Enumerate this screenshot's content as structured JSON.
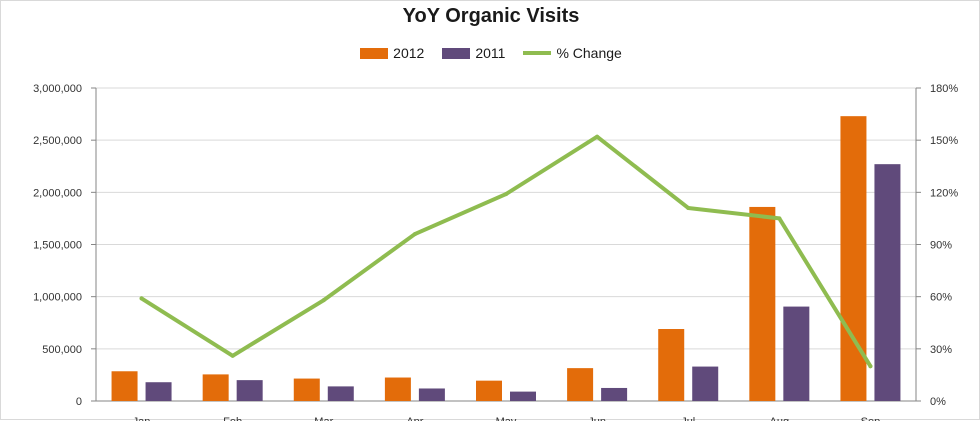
{
  "chart_data": {
    "type": "bar",
    "title": "YoY Organic Visits",
    "categories": [
      "Jan",
      "Feb",
      "Mar",
      "Apr",
      "May",
      "Jun",
      "Jul",
      "Aug",
      "Sep"
    ],
    "series": [
      {
        "name": "2012",
        "type": "bar",
        "axis": "left",
        "color": "#e36c0a",
        "values": [
          285000,
          255000,
          215000,
          225000,
          195000,
          315000,
          690000,
          1860000,
          2730000
        ]
      },
      {
        "name": "2011",
        "type": "bar",
        "axis": "left",
        "color": "#604a7b",
        "values": [
          180000,
          200000,
          140000,
          120000,
          90000,
          125000,
          330000,
          905000,
          2270000
        ]
      },
      {
        "name": "% Change",
        "type": "line",
        "axis": "right",
        "color": "#8fbc50",
        "values": [
          0.59,
          0.26,
          0.58,
          0.96,
          1.19,
          1.52,
          1.11,
          1.05,
          0.2
        ]
      }
    ],
    "y_left": {
      "min": 0,
      "max": 3000000,
      "step": 500000,
      "tick_labels": [
        "0",
        "500,000",
        "1,000,000",
        "1,500,000",
        "2,000,000",
        "2,500,000",
        "3,000,000"
      ]
    },
    "y_right": {
      "min": 0,
      "max": 1.8,
      "step": 0.3,
      "tick_labels": [
        "0%",
        "30%",
        "60%",
        "90%",
        "120%",
        "150%",
        "180%"
      ]
    },
    "grid": true,
    "legend": "top-center",
    "xlabel": "",
    "ylabel": ""
  }
}
